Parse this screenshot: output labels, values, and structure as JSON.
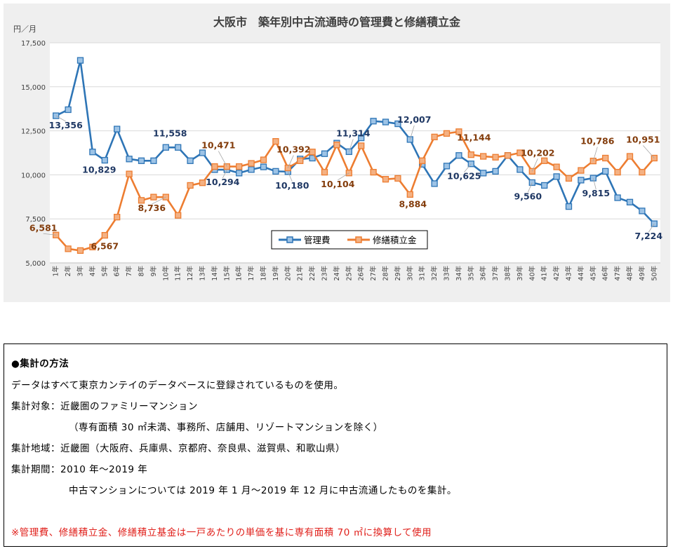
{
  "chart_data": {
    "type": "line",
    "title": "大阪市　築年別中古流通時の管理費と修繕積立金",
    "unit_label": "円／月",
    "ylim": [
      5000,
      17500
    ],
    "y_ticks": [
      "5,000",
      "7,500",
      "10,000",
      "12,500",
      "15,000",
      "17,500"
    ],
    "y_tick_values": [
      5000,
      7500,
      10000,
      12500,
      15000,
      17500
    ],
    "categories": [
      "1年",
      "2年",
      "3年",
      "4年",
      "5年",
      "6年",
      "7年",
      "8年",
      "9年",
      "10年",
      "11年",
      "12年",
      "13年",
      "14年",
      "15年",
      "16年",
      "17年",
      "18年",
      "19年",
      "20年",
      "21年",
      "22年",
      "23年",
      "24年",
      "25年",
      "26年",
      "27年",
      "28年",
      "29年",
      "30年",
      "31年",
      "32年",
      "33年",
      "34年",
      "35年",
      "36年",
      "37年",
      "38年",
      "39年",
      "40年",
      "41年",
      "42年",
      "43年",
      "44年",
      "45年",
      "46年",
      "47年",
      "48年",
      "49年",
      "50年"
    ],
    "series": [
      {
        "name": "管理費",
        "color": "#2e75b6",
        "marker_fill": "#9dc3e6",
        "values": [
          13356,
          13700,
          16500,
          11300,
          10829,
          12600,
          10900,
          10800,
          10800,
          11558,
          11558,
          10800,
          11250,
          10294,
          10294,
          10100,
          10300,
          10450,
          10200,
          10180,
          10900,
          10950,
          11200,
          11800,
          11314,
          12100,
          13050,
          13000,
          12900,
          12007,
          10600,
          9500,
          10500,
          11100,
          10625,
          10100,
          10200,
          11100,
          10300,
          9560,
          9400,
          9900,
          8200,
          9700,
          9815,
          10200,
          8700,
          8450,
          7950,
          7224
        ]
      },
      {
        "name": "修繕積立金",
        "color": "#ed7d31",
        "marker_fill": "#f4b183",
        "values": [
          6581,
          5800,
          5700,
          5900,
          6567,
          7600,
          10050,
          8550,
          8736,
          8736,
          7700,
          9400,
          9550,
          10471,
          10471,
          10471,
          10650,
          10850,
          11900,
          10392,
          10800,
          11300,
          10150,
          11700,
          10104,
          11650,
          10150,
          9750,
          9800,
          8884,
          10800,
          12150,
          12350,
          12450,
          11144,
          11050,
          11000,
          11100,
          11250,
          10202,
          10800,
          10450,
          9800,
          10250,
          10786,
          10951,
          10150,
          11050,
          10150,
          10951
        ]
      }
    ],
    "data_labels": [
      {
        "series": 0,
        "index": 0,
        "text": "13,356"
      },
      {
        "series": 0,
        "index": 4,
        "text": "10,829"
      },
      {
        "series": 0,
        "index": 9,
        "text": "11,558"
      },
      {
        "series": 0,
        "index": 14,
        "text": "10,294"
      },
      {
        "series": 0,
        "index": 19,
        "text": "10,180"
      },
      {
        "series": 0,
        "index": 24,
        "text": "11,314"
      },
      {
        "series": 0,
        "index": 29,
        "text": "12,007"
      },
      {
        "series": 0,
        "index": 34,
        "text": "10,625"
      },
      {
        "series": 0,
        "index": 39,
        "text": "9,560"
      },
      {
        "series": 0,
        "index": 44,
        "text": "9,815"
      },
      {
        "series": 0,
        "index": 49,
        "text": "7,224"
      },
      {
        "series": 1,
        "index": 0,
        "text": "6,581"
      },
      {
        "series": 1,
        "index": 4,
        "text": "6,567"
      },
      {
        "series": 1,
        "index": 9,
        "text": "8,736"
      },
      {
        "series": 1,
        "index": 14,
        "text": "10,471"
      },
      {
        "series": 1,
        "index": 19,
        "text": "10,392"
      },
      {
        "series": 1,
        "index": 24,
        "text": "10,104"
      },
      {
        "series": 1,
        "index": 29,
        "text": "8,884"
      },
      {
        "series": 1,
        "index": 34,
        "text": "11,144"
      },
      {
        "series": 1,
        "index": 39,
        "text": "10,202"
      },
      {
        "series": 1,
        "index": 44,
        "text": "10,786"
      },
      {
        "series": 1,
        "index": 49,
        "text": "10,951"
      }
    ],
    "legend_position": "bottom-center",
    "grid": "horizontal"
  },
  "method": {
    "heading": "●集計の方法",
    "line1": "データはすべて東京カンテイのデータベースに登録されているものを使用。",
    "line2": "集計対象：近畿圏のファミリーマンション",
    "line3": "（専有面積 30 ㎡未満、事務所、店舗用、リゾートマンションを除く）",
    "line4": "集計地域：近畿圏（大阪府、兵庫県、京都府、奈良県、滋賀県、和歌山県）",
    "line5": "集計期間：2010 年～2019 年",
    "line6": "中古マンションについては 2019 年 1 月～2019 年 12 月に中古流通したものを集計。",
    "note": "※管理費、修繕積立金、修繕積立基金は一戸あたりの単価を基に専有面積 70 ㎡に換算して使用",
    "note_color": "#e0201b"
  }
}
